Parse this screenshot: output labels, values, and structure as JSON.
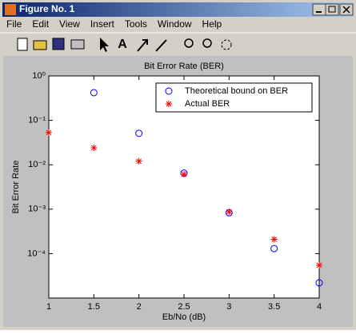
{
  "window": {
    "title": "Figure No. 1",
    "menu": [
      "File",
      "Edit",
      "View",
      "Insert",
      "Tools",
      "Window",
      "Help"
    ]
  },
  "chart_data": {
    "type": "scatter",
    "title": "Bit Error Rate (BER)",
    "x_label": "Eb/No (dB)",
    "y_label": "Bit Error Rate",
    "x": [
      1,
      1.5,
      2,
      2.5,
      3,
      3.5,
      4
    ],
    "series": [
      {
        "name": "Theoretical bound on BER",
        "color": "#0000ff",
        "marker": "circle",
        "values": [
          null,
          0.42,
          0.051,
          0.0065,
          0.00083,
          0.00013,
          2.2e-05
        ]
      },
      {
        "name": "Actual BER",
        "color": "#ff0000",
        "marker": "star",
        "values": [
          0.053,
          0.024,
          0.012,
          0.0061,
          0.00087,
          0.00021,
          5.5e-05
        ]
      }
    ],
    "xlim": [
      1,
      4
    ],
    "xticks": [
      1,
      1.5,
      2,
      2.5,
      3,
      3.5,
      4
    ],
    "ylim": [
      1e-05,
      1
    ],
    "log_y": true,
    "yticks": [
      {
        "value": 1,
        "label": "10⁰"
      },
      {
        "value": 0.1,
        "label": "10⁻¹"
      },
      {
        "value": 0.01,
        "label": "10⁻²"
      },
      {
        "value": 0.001,
        "label": "10⁻³"
      },
      {
        "value": 0.0001,
        "label": "10⁻⁴"
      }
    ],
    "legend": "northeast"
  }
}
